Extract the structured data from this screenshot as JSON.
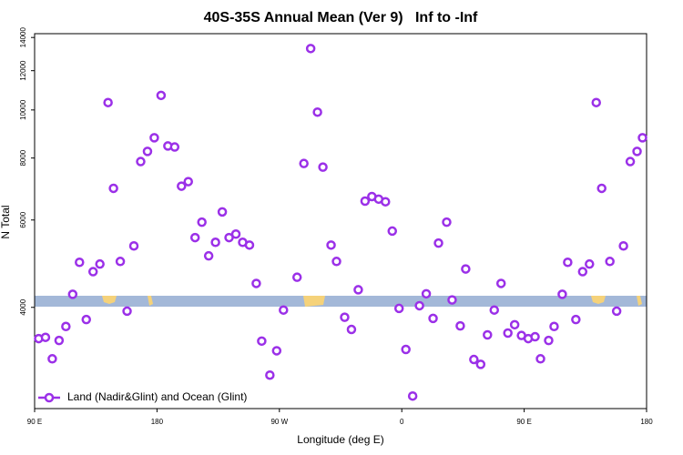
{
  "chart_data": {
    "type": "scatter",
    "title": "40S-35S Annual Mean (Ver 9)   Inf to -Inf",
    "x_label": "Longitude (deg E)",
    "y_label": "N Total",
    "x": [
      93,
      98,
      103,
      108,
      113,
      118,
      123,
      128,
      133,
      138,
      144,
      148,
      153,
      158,
      163,
      168,
      173,
      178,
      183,
      188,
      193,
      198,
      203,
      208,
      213,
      218,
      223,
      228,
      233,
      238,
      243,
      248,
      253,
      257,
      263,
      268,
      273,
      283,
      288,
      293,
      298,
      302,
      308,
      312,
      318,
      323,
      328,
      333,
      338,
      343,
      348,
      353,
      358,
      363,
      368,
      373,
      378,
      383,
      387,
      393,
      397,
      403,
      407,
      413,
      418,
      423,
      428,
      433,
      438,
      443,
      448,
      453,
      458,
      462,
      468,
      472,
      478,
      482,
      488,
      493,
      498,
      503,
      507,
      513,
      518,
      523,
      528,
      533,
      537
    ],
    "series": [
      {
        "name": "Land (Nadir&Glint) and Ocean (Glint)",
        "color": "#9b30e8",
        "values": [
          3460,
          3480,
          3150,
          3430,
          3660,
          4250,
          4930,
          3780,
          4720,
          4890,
          10350,
          6950,
          4950,
          3930,
          5320,
          7870,
          8250,
          8790,
          10700,
          8460,
          8420,
          7020,
          7170,
          5530,
          5940,
          5080,
          5410,
          6230,
          5530,
          5620,
          5410,
          5340,
          4470,
          3420,
          2920,
          3270,
          3950,
          4600,
          7800,
          13300,
          9900,
          7670,
          5340,
          4950,
          3820,
          3610,
          4340,
          6550,
          6690,
          6610,
          6530,
          5700,
          3980,
          3290,
          2650,
          4030,
          4260,
          3800,
          5390,
          5940,
          4140,
          3670,
          4780,
          3140,
          3070,
          3520,
          3950,
          4470,
          3550,
          3690,
          3510,
          3460,
          3490,
          3150,
          3430,
          3660,
          4250,
          4930,
          3780,
          4720,
          4890,
          10350,
          6950,
          4950,
          3930,
          5320,
          7870,
          8250,
          8790
        ]
      }
    ],
    "xlim": [
      90,
      540
    ],
    "xticks": [
      {
        "value": 90,
        "label": "90 E"
      },
      180,
      {
        "value": 270,
        "label": "90 W"
      },
      {
        "value": 360,
        "label": "0"
      },
      {
        "value": 450,
        "label": "90 E"
      },
      {
        "value": 540,
        "label": "180"
      }
    ],
    "ylim": [
      2500,
      14250
    ],
    "yticks": [
      4000,
      6000,
      8000,
      10000,
      12000,
      14000
    ],
    "y_scale": "log",
    "legend": "bottom-left"
  }
}
